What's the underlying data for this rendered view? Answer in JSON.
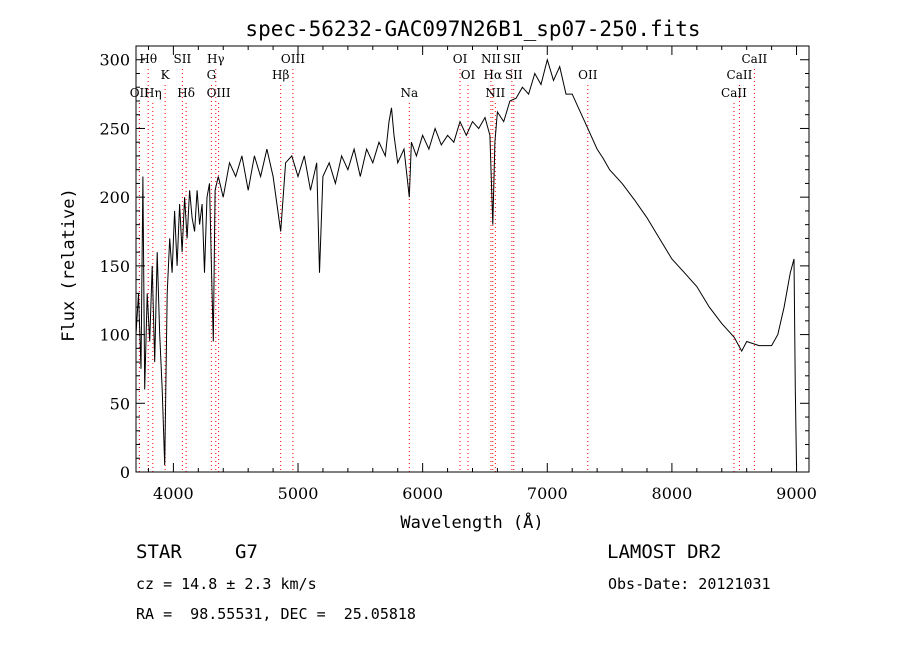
{
  "chart_data": {
    "type": "line",
    "title": "spec-56232-GAC097N26B1_sp07-250.fits",
    "xlabel": "Wavelength (Å)",
    "ylabel": "Flux (relative)",
    "xlim": [
      3700,
      9100
    ],
    "ylim": [
      0,
      310
    ],
    "xticks": [
      4000,
      5000,
      6000,
      7000,
      8000,
      9000
    ],
    "yticks": [
      0,
      50,
      100,
      150,
      200,
      250,
      300
    ],
    "grid": false,
    "line_color": "#000000",
    "marker_color": "#ff0000",
    "series": [
      {
        "values": [
          [
            3700,
            100
          ],
          [
            3720,
            130
          ],
          [
            3740,
            75
          ],
          [
            3755,
            215
          ],
          [
            3770,
            60
          ],
          [
            3790,
            130
          ],
          [
            3810,
            95
          ],
          [
            3830,
            150
          ],
          [
            3850,
            80
          ],
          [
            3870,
            160
          ],
          [
            3890,
            100
          ],
          [
            3910,
            60
          ],
          [
            3930,
            5
          ],
          [
            3950,
            130
          ],
          [
            3970,
            170
          ],
          [
            3990,
            145
          ],
          [
            4010,
            190
          ],
          [
            4030,
            150
          ],
          [
            4050,
            195
          ],
          [
            4070,
            160
          ],
          [
            4090,
            200
          ],
          [
            4110,
            170
          ],
          [
            4130,
            205
          ],
          [
            4150,
            185
          ],
          [
            4170,
            175
          ],
          [
            4190,
            205
          ],
          [
            4210,
            180
          ],
          [
            4230,
            195
          ],
          [
            4250,
            145
          ],
          [
            4270,
            200
          ],
          [
            4290,
            210
          ],
          [
            4305,
            150
          ],
          [
            4320,
            95
          ],
          [
            4335,
            205
          ],
          [
            4360,
            215
          ],
          [
            4400,
            200
          ],
          [
            4450,
            225
          ],
          [
            4500,
            215
          ],
          [
            4550,
            230
          ],
          [
            4600,
            205
          ],
          [
            4650,
            230
          ],
          [
            4700,
            215
          ],
          [
            4750,
            235
          ],
          [
            4800,
            215
          ],
          [
            4861,
            175
          ],
          [
            4900,
            225
          ],
          [
            4950,
            230
          ],
          [
            5000,
            215
          ],
          [
            5050,
            230
          ],
          [
            5100,
            205
          ],
          [
            5150,
            225
          ],
          [
            5172,
            145
          ],
          [
            5200,
            215
          ],
          [
            5250,
            225
          ],
          [
            5300,
            210
          ],
          [
            5350,
            230
          ],
          [
            5400,
            220
          ],
          [
            5450,
            235
          ],
          [
            5500,
            215
          ],
          [
            5550,
            235
          ],
          [
            5600,
            225
          ],
          [
            5650,
            240
          ],
          [
            5700,
            230
          ],
          [
            5730,
            255
          ],
          [
            5750,
            265
          ],
          [
            5770,
            245
          ],
          [
            5800,
            225
          ],
          [
            5850,
            235
          ],
          [
            5893,
            200
          ],
          [
            5910,
            240
          ],
          [
            5950,
            230
          ],
          [
            6000,
            245
          ],
          [
            6050,
            235
          ],
          [
            6100,
            250
          ],
          [
            6150,
            238
          ],
          [
            6200,
            245
          ],
          [
            6250,
            240
          ],
          [
            6300,
            255
          ],
          [
            6350,
            245
          ],
          [
            6400,
            255
          ],
          [
            6450,
            250
          ],
          [
            6500,
            258
          ],
          [
            6540,
            245
          ],
          [
            6563,
            180
          ],
          [
            6580,
            240
          ],
          [
            6600,
            262
          ],
          [
            6650,
            255
          ],
          [
            6700,
            270
          ],
          [
            6750,
            272
          ],
          [
            6800,
            280
          ],
          [
            6850,
            275
          ],
          [
            6900,
            290
          ],
          [
            6950,
            282
          ],
          [
            7000,
            300
          ],
          [
            7050,
            285
          ],
          [
            7100,
            295
          ],
          [
            7150,
            275
          ],
          [
            7200,
            275
          ],
          [
            7250,
            265
          ],
          [
            7300,
            255
          ],
          [
            7350,
            245
          ],
          [
            7400,
            235
          ],
          [
            7450,
            228
          ],
          [
            7500,
            220
          ],
          [
            7600,
            210
          ],
          [
            7700,
            198
          ],
          [
            7800,
            185
          ],
          [
            7900,
            170
          ],
          [
            8000,
            155
          ],
          [
            8100,
            145
          ],
          [
            8200,
            135
          ],
          [
            8300,
            120
          ],
          [
            8400,
            108
          ],
          [
            8500,
            98
          ],
          [
            8560,
            88
          ],
          [
            8600,
            95
          ],
          [
            8700,
            92
          ],
          [
            8800,
            92
          ],
          [
            8850,
            100
          ],
          [
            8900,
            120
          ],
          [
            8950,
            145
          ],
          [
            8980,
            155
          ],
          [
            8990,
            60
          ],
          [
            9000,
            5
          ]
        ]
      }
    ],
    "line_labels": [
      {
        "label": "Hθ",
        "x": 3798,
        "row": 1
      },
      {
        "label": "OII",
        "x": 3727,
        "row": 3
      },
      {
        "label": "Hη",
        "x": 3835,
        "row": 3
      },
      {
        "label": "K",
        "x": 3934,
        "row": 2
      },
      {
        "label": "SII",
        "x": 4072,
        "row": 1
      },
      {
        "label": "Hδ",
        "x": 4102,
        "row": 3
      },
      {
        "label": "Hγ",
        "x": 4340,
        "row": 1
      },
      {
        "label": "G",
        "x": 4305,
        "row": 2
      },
      {
        "label": "OIII",
        "x": 4363,
        "row": 3
      },
      {
        "label": "OIII",
        "x": 4959,
        "row": 1
      },
      {
        "label": "Hβ",
        "x": 4861,
        "row": 2
      },
      {
        "label": "Na",
        "x": 5893,
        "row": 3
      },
      {
        "label": "OI",
        "x": 6300,
        "row": 1
      },
      {
        "label": "OI",
        "x": 6364,
        "row": 2
      },
      {
        "label": "NII",
        "x": 6548,
        "row": 1
      },
      {
        "label": "Hα",
        "x": 6563,
        "row": 2
      },
      {
        "label": "NII",
        "x": 6583,
        "row": 3
      },
      {
        "label": "SII",
        "x": 6716,
        "row": 1
      },
      {
        "label": "SII",
        "x": 6731,
        "row": 2
      },
      {
        "label": "OII",
        "x": 7325,
        "row": 2
      },
      {
        "label": "CaII",
        "x": 8662,
        "row": 1
      },
      {
        "label": "CaII",
        "x": 8542,
        "row": 2
      },
      {
        "label": "CaII",
        "x": 8498,
        "row": 3
      }
    ]
  },
  "info": {
    "class_label": "STAR",
    "subclass": "G7",
    "survey": "LAMOST DR2",
    "cz": "cz = 14.8 ± 2.3 km/s",
    "obs_date": "Obs-Date: 20121031",
    "coords": "RA =  98.55531, DEC =  25.05818"
  }
}
